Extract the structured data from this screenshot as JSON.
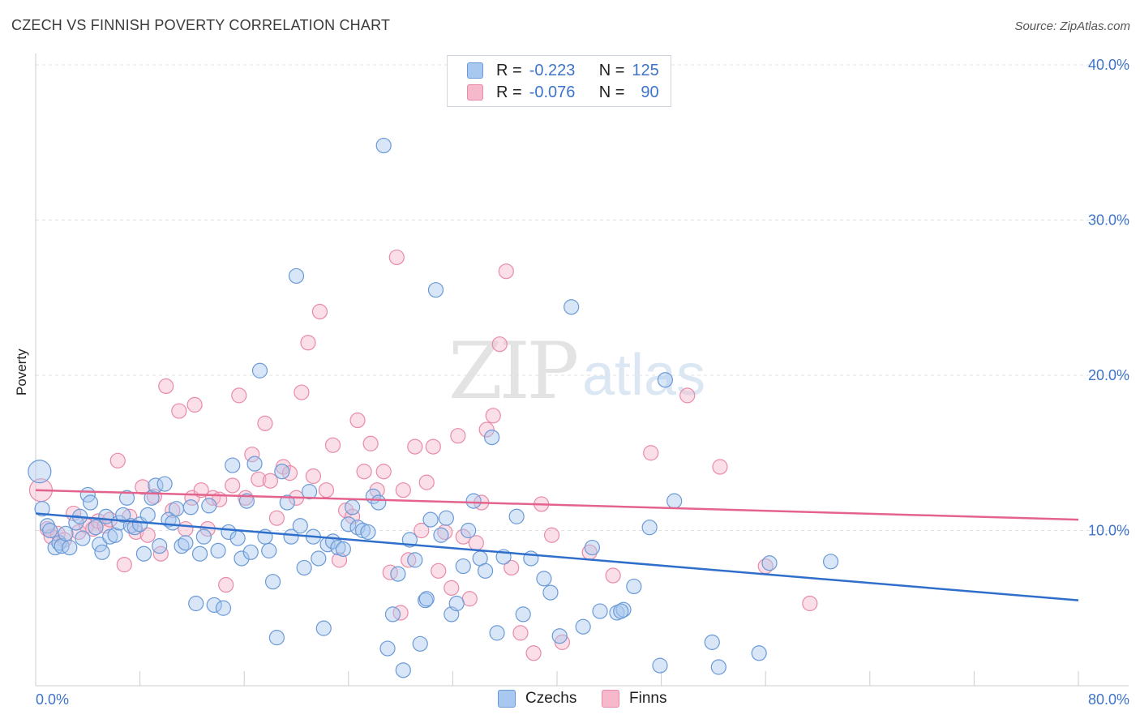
{
  "title": "CZECH VS FINNISH POVERTY CORRELATION CHART",
  "source": "Source: ZipAtlas.com",
  "watermark": {
    "zip": "ZIP",
    "atlas": "atlas"
  },
  "colors": {
    "czech_fill": "#a9c8ef",
    "czech_stroke": "#6a9ad6",
    "czech_line": "#2f6fcc",
    "finn_fill": "#f5b9cb",
    "finn_stroke": "#e98aa8",
    "finn_line": "#e4638d",
    "tick_text": "#3d74c9",
    "grid": "#dde1e6"
  },
  "legend": {
    "r_label": "R =",
    "n_label": "N =",
    "czech_r": "-0.223",
    "czech_n": "125",
    "finn_r": "-0.076",
    "finn_n": "90"
  },
  "bottom_legend": {
    "czech": "Czechs",
    "finn": "Finns"
  },
  "chart_data": {
    "type": "scatter",
    "title": "CZECH VS FINNISH POVERTY CORRELATION CHART",
    "xlabel": "",
    "ylabel": "Poverty",
    "xlim": [
      0,
      80
    ],
    "ylim": [
      0,
      40
    ],
    "x_tick_labels": [
      "0.0%",
      "80.0%"
    ],
    "y_ticks": [
      10,
      20,
      30,
      40
    ],
    "y_tick_labels": [
      "10.0%",
      "20.0%",
      "30.0%",
      "40.0%"
    ],
    "grid": true,
    "legend_position": "top-center",
    "series": [
      {
        "name": "Czechs",
        "r": -0.223,
        "n": 125,
        "trend": {
          "x": [
            0,
            80
          ],
          "y": [
            11.1,
            5.5
          ]
        },
        "points": [
          [
            0.3,
            13.8
          ],
          [
            0.5,
            11.4
          ],
          [
            0.9,
            10.3
          ],
          [
            1.1,
            10.0
          ],
          [
            1.5,
            8.9
          ],
          [
            1.8,
            9.2
          ],
          [
            2.0,
            9.0
          ],
          [
            2.3,
            9.8
          ],
          [
            2.6,
            8.9
          ],
          [
            3.1,
            10.5
          ],
          [
            3.4,
            10.9
          ],
          [
            3.6,
            9.5
          ],
          [
            4.0,
            12.3
          ],
          [
            4.2,
            11.8
          ],
          [
            4.6,
            10.2
          ],
          [
            4.9,
            9.1
          ],
          [
            5.1,
            8.6
          ],
          [
            5.4,
            10.9
          ],
          [
            5.7,
            9.6
          ],
          [
            6.1,
            9.7
          ],
          [
            6.4,
            10.5
          ],
          [
            6.7,
            11.0
          ],
          [
            7.0,
            12.1
          ],
          [
            7.3,
            10.3
          ],
          [
            7.6,
            10.2
          ],
          [
            8.0,
            10.4
          ],
          [
            8.3,
            8.5
          ],
          [
            8.6,
            11.0
          ],
          [
            8.9,
            12.1
          ],
          [
            9.2,
            12.9
          ],
          [
            9.5,
            9.0
          ],
          [
            9.9,
            13.0
          ],
          [
            10.2,
            10.7
          ],
          [
            10.5,
            10.5
          ],
          [
            10.8,
            11.4
          ],
          [
            11.2,
            9.0
          ],
          [
            11.5,
            9.2
          ],
          [
            11.9,
            11.5
          ],
          [
            12.3,
            5.3
          ],
          [
            12.6,
            8.5
          ],
          [
            12.9,
            9.6
          ],
          [
            13.3,
            11.6
          ],
          [
            13.7,
            5.2
          ],
          [
            14.0,
            8.7
          ],
          [
            14.4,
            5.0
          ],
          [
            14.8,
            9.9
          ],
          [
            15.1,
            14.2
          ],
          [
            15.5,
            9.5
          ],
          [
            15.8,
            8.2
          ],
          [
            16.2,
            11.9
          ],
          [
            16.5,
            8.6
          ],
          [
            16.8,
            14.3
          ],
          [
            17.2,
            20.3
          ],
          [
            17.6,
            9.6
          ],
          [
            17.9,
            8.7
          ],
          [
            18.2,
            6.7
          ],
          [
            18.5,
            3.1
          ],
          [
            18.9,
            13.8
          ],
          [
            19.3,
            11.8
          ],
          [
            19.6,
            9.6
          ],
          [
            20.0,
            26.4
          ],
          [
            20.3,
            10.3
          ],
          [
            20.6,
            7.6
          ],
          [
            21.0,
            12.5
          ],
          [
            21.3,
            9.6
          ],
          [
            21.7,
            8.2
          ],
          [
            22.1,
            3.7
          ],
          [
            22.4,
            9.1
          ],
          [
            22.8,
            9.3
          ],
          [
            23.2,
            8.9
          ],
          [
            23.6,
            8.8
          ],
          [
            24.0,
            10.4
          ],
          [
            24.3,
            11.5
          ],
          [
            24.7,
            10.2
          ],
          [
            25.1,
            10.0
          ],
          [
            25.5,
            9.9
          ],
          [
            25.9,
            12.2
          ],
          [
            26.3,
            11.8
          ],
          [
            26.7,
            34.8
          ],
          [
            27.0,
            2.4
          ],
          [
            27.4,
            4.6
          ],
          [
            27.8,
            7.2
          ],
          [
            28.2,
            1.0
          ],
          [
            28.7,
            9.4
          ],
          [
            29.1,
            8.1
          ],
          [
            29.5,
            2.7
          ],
          [
            29.9,
            5.5
          ],
          [
            30.3,
            10.7
          ],
          [
            30.7,
            25.5
          ],
          [
            31.1,
            9.7
          ],
          [
            31.5,
            10.8
          ],
          [
            31.9,
            4.6
          ],
          [
            32.3,
            5.3
          ],
          [
            32.8,
            7.7
          ],
          [
            33.2,
            10.0
          ],
          [
            33.6,
            11.9
          ],
          [
            34.1,
            8.2
          ],
          [
            34.5,
            7.4
          ],
          [
            35.0,
            16.0
          ],
          [
            35.4,
            3.4
          ],
          [
            35.9,
            8.3
          ],
          [
            36.9,
            10.9
          ],
          [
            37.4,
            4.6
          ],
          [
            38.0,
            8.2
          ],
          [
            39.0,
            6.9
          ],
          [
            39.5,
            6.0
          ],
          [
            40.2,
            3.2
          ],
          [
            41.1,
            24.4
          ],
          [
            42.0,
            3.8
          ],
          [
            42.7,
            8.9
          ],
          [
            43.3,
            4.8
          ],
          [
            44.6,
            4.7
          ],
          [
            45.1,
            4.9
          ],
          [
            45.9,
            6.4
          ],
          [
            47.1,
            10.2
          ],
          [
            47.9,
            1.3
          ],
          [
            48.3,
            19.7
          ],
          [
            49.0,
            11.9
          ],
          [
            51.9,
            2.8
          ],
          [
            55.5,
            2.1
          ],
          [
            56.3,
            7.9
          ],
          [
            61.0,
            8.0
          ],
          [
            52.4,
            1.2
          ],
          [
            44.9,
            4.8
          ],
          [
            30.0,
            5.6
          ]
        ]
      },
      {
        "name": "Finns",
        "r": -0.076,
        "n": 90,
        "trend": {
          "x": [
            0,
            80
          ],
          "y": [
            12.6,
            10.7
          ]
        },
        "points": [
          [
            0.4,
            12.6
          ],
          [
            0.9,
            10.1
          ],
          [
            1.2,
            9.6
          ],
          [
            1.7,
            9.8
          ],
          [
            2.2,
            9.4
          ],
          [
            2.9,
            11.1
          ],
          [
            3.3,
            9.9
          ],
          [
            3.9,
            10.3
          ],
          [
            4.4,
            10.1
          ],
          [
            4.8,
            10.6
          ],
          [
            5.3,
            10.3
          ],
          [
            5.7,
            10.7
          ],
          [
            6.3,
            14.5
          ],
          [
            6.8,
            7.8
          ],
          [
            7.2,
            10.9
          ],
          [
            7.7,
            9.9
          ],
          [
            8.2,
            12.8
          ],
          [
            8.6,
            9.7
          ],
          [
            9.1,
            12.2
          ],
          [
            9.6,
            8.5
          ],
          [
            10.0,
            19.3
          ],
          [
            10.5,
            11.3
          ],
          [
            11.0,
            17.7
          ],
          [
            11.5,
            10.1
          ],
          [
            12.0,
            12.1
          ],
          [
            12.2,
            18.1
          ],
          [
            12.7,
            12.6
          ],
          [
            13.2,
            10.1
          ],
          [
            13.6,
            12.1
          ],
          [
            14.1,
            12.0
          ],
          [
            14.6,
            6.5
          ],
          [
            15.1,
            12.9
          ],
          [
            15.6,
            18.7
          ],
          [
            16.1,
            12.1
          ],
          [
            16.6,
            14.9
          ],
          [
            17.1,
            13.3
          ],
          [
            17.6,
            16.9
          ],
          [
            18.0,
            13.2
          ],
          [
            18.5,
            10.8
          ],
          [
            19.0,
            14.1
          ],
          [
            19.5,
            13.7
          ],
          [
            20.0,
            12.1
          ],
          [
            20.4,
            18.9
          ],
          [
            20.9,
            22.1
          ],
          [
            21.3,
            13.5
          ],
          [
            21.8,
            24.1
          ],
          [
            22.3,
            12.6
          ],
          [
            22.8,
            15.5
          ],
          [
            23.3,
            8.1
          ],
          [
            23.8,
            11.3
          ],
          [
            24.3,
            10.9
          ],
          [
            24.7,
            17.1
          ],
          [
            25.2,
            13.8
          ],
          [
            25.7,
            15.6
          ],
          [
            26.2,
            12.6
          ],
          [
            26.7,
            13.8
          ],
          [
            27.2,
            7.3
          ],
          [
            27.7,
            27.6
          ],
          [
            28.2,
            12.6
          ],
          [
            28.6,
            8.1
          ],
          [
            29.1,
            15.4
          ],
          [
            29.6,
            10.0
          ],
          [
            30.0,
            13.1
          ],
          [
            30.5,
            15.4
          ],
          [
            30.9,
            7.4
          ],
          [
            31.4,
            9.9
          ],
          [
            31.9,
            6.3
          ],
          [
            32.4,
            16.1
          ],
          [
            32.8,
            9.6
          ],
          [
            33.3,
            5.6
          ],
          [
            33.8,
            9.2
          ],
          [
            34.2,
            11.8
          ],
          [
            34.6,
            16.5
          ],
          [
            35.1,
            17.4
          ],
          [
            35.6,
            22.0
          ],
          [
            36.1,
            26.7
          ],
          [
            36.5,
            7.6
          ],
          [
            37.2,
            3.4
          ],
          [
            38.2,
            2.1
          ],
          [
            38.8,
            11.7
          ],
          [
            39.6,
            9.7
          ],
          [
            40.4,
            2.8
          ],
          [
            42.5,
            8.6
          ],
          [
            44.3,
            7.1
          ],
          [
            47.2,
            15.0
          ],
          [
            50.0,
            18.7
          ],
          [
            52.5,
            14.1
          ],
          [
            56.0,
            7.7
          ],
          [
            59.4,
            5.3
          ],
          [
            28.0,
            4.7
          ]
        ]
      }
    ]
  }
}
